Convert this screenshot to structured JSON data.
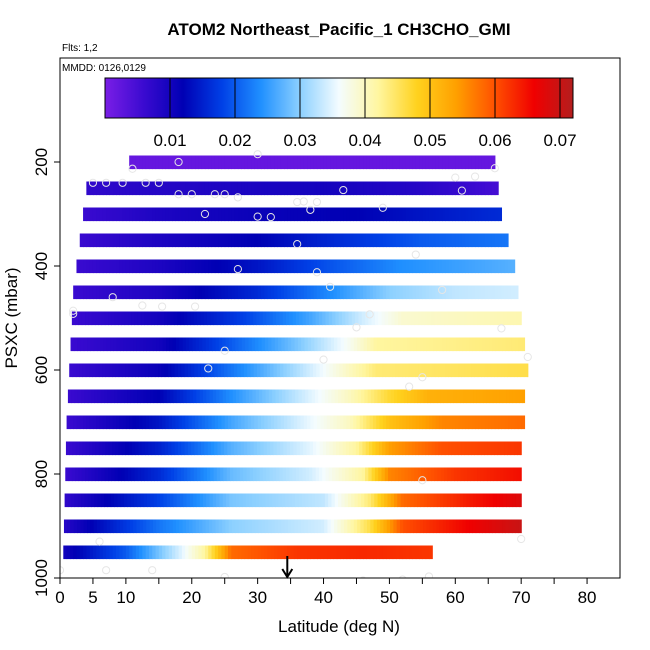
{
  "chart_data": {
    "type": "heatmap",
    "title": "ATOM2 Northeast_Pacific_1 CH3CHO_GMI",
    "flights_note": "Flts: 1,2",
    "date_note": "MMDD: 0126,0129",
    "xlabel": "Latitude (deg N)",
    "ylabel": "PSXC (mbar)",
    "xlim": [
      0,
      85
    ],
    "ylim": [
      1000,
      0
    ],
    "x_ticks": [
      0,
      5,
      10,
      20,
      30,
      40,
      50,
      60,
      70,
      80
    ],
    "x_tick_labels": [
      "0",
      "5",
      "10",
      "20",
      "30",
      "40",
      "50",
      "60",
      "70",
      "80"
    ],
    "y_ticks": [
      200,
      400,
      600,
      800,
      1000
    ],
    "y_tick_labels": [
      "200",
      "400",
      "600",
      "800",
      "1000"
    ],
    "colorbar": {
      "range": [
        0.0,
        0.072
      ],
      "ticks": [
        0.01,
        0.02,
        0.03,
        0.04,
        0.05,
        0.06,
        0.07
      ],
      "tick_labels": [
        "0.01",
        "0.02",
        "0.03",
        "0.04",
        "0.05",
        "0.06",
        "0.07"
      ],
      "colors": [
        "#7a1ee6",
        "#3a0ad0",
        "#0000b4",
        "#0040e6",
        "#2090ff",
        "#8cd0ff",
        "#f4fcff",
        "#fff6a0",
        "#ffd21e",
        "#ffa000",
        "#ff5000",
        "#f00000",
        "#b41e1e"
      ]
    },
    "rows": [
      {
        "p": 200,
        "x0": 10.5,
        "x1": 66.0,
        "v": [
          [
            10.5,
            0.002
          ],
          [
            66.0,
            0.002
          ]
        ]
      },
      {
        "p": 250,
        "x0": 4.0,
        "x1": 66.5,
        "v": [
          [
            4,
            0.007
          ],
          [
            12,
            0.008
          ],
          [
            25,
            0.009
          ],
          [
            40,
            0.01
          ],
          [
            55,
            0.008
          ],
          [
            66.5,
            0.005
          ]
        ]
      },
      {
        "p": 300,
        "x0": 3.5,
        "x1": 67.0,
        "v": [
          [
            3.5,
            0.006
          ],
          [
            15,
            0.009
          ],
          [
            30,
            0.011
          ],
          [
            45,
            0.012
          ],
          [
            55,
            0.014
          ],
          [
            67,
            0.016
          ]
        ]
      },
      {
        "p": 350,
        "x0": 3.0,
        "x1": 68.0,
        "v": [
          [
            3,
            0.006
          ],
          [
            15,
            0.009
          ],
          [
            30,
            0.012
          ],
          [
            42,
            0.016
          ],
          [
            55,
            0.02
          ],
          [
            68,
            0.022
          ]
        ]
      },
      {
        "p": 400,
        "x0": 2.5,
        "x1": 69.0,
        "v": [
          [
            2.5,
            0.006
          ],
          [
            15,
            0.009
          ],
          [
            30,
            0.014
          ],
          [
            40,
            0.019
          ],
          [
            52,
            0.024
          ],
          [
            69,
            0.027
          ]
        ]
      },
      {
        "p": 450,
        "x0": 2.0,
        "x1": 69.5,
        "v": [
          [
            2,
            0.006
          ],
          [
            15,
            0.009
          ],
          [
            30,
            0.016
          ],
          [
            40,
            0.023
          ],
          [
            50,
            0.03
          ],
          [
            60,
            0.033
          ],
          [
            69.5,
            0.034
          ]
        ]
      },
      {
        "p": 500,
        "x0": 1.8,
        "x1": 70.0,
        "v": [
          [
            1.8,
            0.006
          ],
          [
            15,
            0.01
          ],
          [
            28,
            0.018
          ],
          [
            38,
            0.026
          ],
          [
            46,
            0.034
          ],
          [
            52,
            0.039
          ],
          [
            70,
            0.041
          ]
        ]
      },
      {
        "p": 550,
        "x0": 1.6,
        "x1": 70.5,
        "v": [
          [
            1.6,
            0.006
          ],
          [
            15,
            0.01
          ],
          [
            26,
            0.02
          ],
          [
            36,
            0.029
          ],
          [
            44,
            0.037
          ],
          [
            48,
            0.042
          ],
          [
            70.5,
            0.044
          ]
        ]
      },
      {
        "p": 600,
        "x0": 1.4,
        "x1": 71.0,
        "v": [
          [
            1.4,
            0.006
          ],
          [
            15,
            0.011
          ],
          [
            26,
            0.022
          ],
          [
            36,
            0.032
          ],
          [
            44,
            0.04
          ],
          [
            48,
            0.044
          ],
          [
            71,
            0.046
          ]
        ]
      },
      {
        "p": 650,
        "x0": 1.2,
        "x1": 70.5,
        "v": [
          [
            1.2,
            0.006
          ],
          [
            15,
            0.012
          ],
          [
            26,
            0.024
          ],
          [
            36,
            0.033
          ],
          [
            44,
            0.04
          ],
          [
            50,
            0.047
          ],
          [
            56,
            0.052
          ],
          [
            70.5,
            0.054
          ]
        ]
      },
      {
        "p": 700,
        "x0": 1.0,
        "x1": 70.5,
        "v": [
          [
            1,
            0.006
          ],
          [
            15,
            0.014
          ],
          [
            26,
            0.026
          ],
          [
            36,
            0.034
          ],
          [
            44,
            0.04
          ],
          [
            50,
            0.05
          ],
          [
            58,
            0.056
          ],
          [
            70.5,
            0.058
          ]
        ]
      },
      {
        "p": 750,
        "x0": 0.9,
        "x1": 70.0,
        "v": [
          [
            0.9,
            0.006
          ],
          [
            15,
            0.015
          ],
          [
            26,
            0.027
          ],
          [
            38,
            0.035
          ],
          [
            45,
            0.042
          ],
          [
            50,
            0.054
          ],
          [
            58,
            0.06
          ],
          [
            70,
            0.062
          ]
        ]
      },
      {
        "p": 800,
        "x0": 0.8,
        "x1": 70.0,
        "v": [
          [
            0.8,
            0.006
          ],
          [
            15,
            0.016
          ],
          [
            26,
            0.028
          ],
          [
            38,
            0.034
          ],
          [
            46,
            0.042
          ],
          [
            50,
            0.056
          ],
          [
            60,
            0.062
          ],
          [
            70,
            0.065
          ]
        ]
      },
      {
        "p": 850,
        "x0": 0.7,
        "x1": 70.0,
        "v": [
          [
            0.7,
            0.007
          ],
          [
            15,
            0.018
          ],
          [
            26,
            0.029
          ],
          [
            40,
            0.033
          ],
          [
            47,
            0.044
          ],
          [
            52,
            0.058
          ],
          [
            62,
            0.064
          ],
          [
            70,
            0.068
          ]
        ]
      },
      {
        "p": 900,
        "x0": 0.6,
        "x1": 70.0,
        "v": [
          [
            0.6,
            0.008
          ],
          [
            15,
            0.022
          ],
          [
            26,
            0.03
          ],
          [
            40,
            0.034
          ],
          [
            47,
            0.046
          ],
          [
            52,
            0.06
          ],
          [
            62,
            0.066
          ],
          [
            70,
            0.07
          ]
        ]
      },
      {
        "p": 950,
        "x0": 0.5,
        "x1": 56.5,
        "v": [
          [
            0.5,
            0.01
          ],
          [
            10,
            0.02
          ],
          [
            18,
            0.034
          ],
          [
            22,
            0.042
          ],
          [
            26,
            0.058
          ],
          [
            36,
            0.062
          ],
          [
            46,
            0.063
          ],
          [
            56.5,
            0.062
          ]
        ]
      }
    ],
    "samples": [
      [
        11,
        213
      ],
      [
        18,
        200
      ],
      [
        30,
        185
      ],
      [
        5,
        240
      ],
      [
        7,
        240
      ],
      [
        9.5,
        240
      ],
      [
        13,
        240
      ],
      [
        15,
        240
      ],
      [
        18,
        262
      ],
      [
        20,
        262
      ],
      [
        23.5,
        262
      ],
      [
        25,
        262
      ],
      [
        27,
        268
      ],
      [
        22,
        300
      ],
      [
        30,
        305
      ],
      [
        32,
        306
      ],
      [
        36,
        277
      ],
      [
        37,
        276
      ],
      [
        38,
        292
      ],
      [
        39,
        277
      ],
      [
        43,
        254
      ],
      [
        49,
        288
      ],
      [
        60,
        230
      ],
      [
        61,
        255
      ],
      [
        63,
        228
      ],
      [
        66,
        212
      ],
      [
        36,
        358
      ],
      [
        39,
        412
      ],
      [
        41,
        440
      ],
      [
        27,
        406
      ],
      [
        54,
        378
      ],
      [
        58,
        446
      ],
      [
        2,
        486
      ],
      [
        2,
        492
      ],
      [
        8,
        460
      ],
      [
        12.5,
        476
      ],
      [
        15.5,
        478
      ],
      [
        20.5,
        478
      ],
      [
        47,
        493
      ],
      [
        45,
        518
      ],
      [
        67,
        520
      ],
      [
        71,
        575
      ],
      [
        40,
        580
      ],
      [
        25,
        563
      ],
      [
        22.5,
        597
      ],
      [
        53,
        632
      ],
      [
        55,
        614
      ],
      [
        55,
        812
      ],
      [
        70,
        925
      ],
      [
        6,
        930
      ],
      [
        0,
        985
      ],
      [
        7,
        985
      ],
      [
        14,
        985
      ],
      [
        25,
        998
      ],
      [
        46,
        1005
      ],
      [
        52,
        1003
      ],
      [
        56,
        997
      ]
    ],
    "arrow_x": 34.5
  }
}
